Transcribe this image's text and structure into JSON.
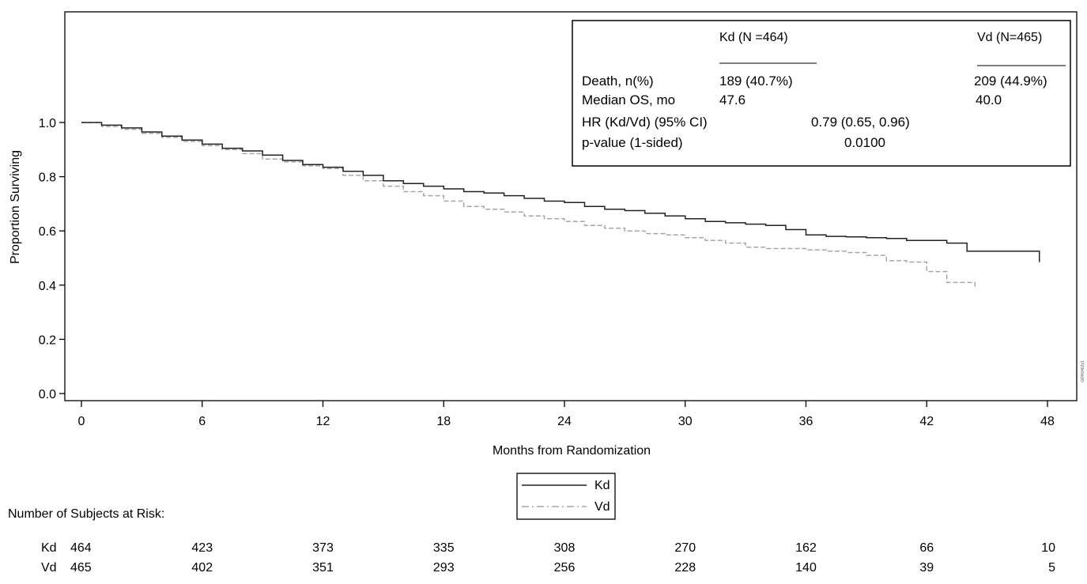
{
  "chart_data": {
    "type": "line",
    "ylabel": "Proportion Surviving",
    "xlabel": "Months from Randomization",
    "xlim": [
      0,
      48
    ],
    "ylim": [
      0,
      1
    ],
    "x_ticks": [
      0,
      6,
      12,
      18,
      24,
      30,
      36,
      42,
      48
    ],
    "y_ticks": [
      "0.0",
      "0.2",
      "0.4",
      "0.6",
      "0.8",
      "1.0"
    ],
    "grid": false,
    "legend": {
      "placement": "below-axis",
      "entries": [
        "Kd",
        "Vd"
      ]
    },
    "series": [
      {
        "name": "Kd",
        "color": "#222222",
        "style": "solid",
        "points": [
          [
            0,
            1.0
          ],
          [
            1,
            0.99
          ],
          [
            2,
            0.98
          ],
          [
            3,
            0.965
          ],
          [
            4,
            0.95
          ],
          [
            5,
            0.935
          ],
          [
            6,
            0.92
          ],
          [
            7,
            0.905
          ],
          [
            8,
            0.895
          ],
          [
            9,
            0.88
          ],
          [
            10,
            0.86
          ],
          [
            11,
            0.845
          ],
          [
            12,
            0.835
          ],
          [
            13,
            0.82
          ],
          [
            14,
            0.805
          ],
          [
            15,
            0.785
          ],
          [
            16,
            0.775
          ],
          [
            17,
            0.765
          ],
          [
            18,
            0.755
          ],
          [
            19,
            0.745
          ],
          [
            20,
            0.74
          ],
          [
            21,
            0.73
          ],
          [
            22,
            0.72
          ],
          [
            23,
            0.71
          ],
          [
            24,
            0.705
          ],
          [
            25,
            0.69
          ],
          [
            26,
            0.68
          ],
          [
            27,
            0.675
          ],
          [
            28,
            0.665
          ],
          [
            29,
            0.655
          ],
          [
            30,
            0.645
          ],
          [
            31,
            0.635
          ],
          [
            32,
            0.63
          ],
          [
            33,
            0.625
          ],
          [
            34,
            0.62
          ],
          [
            35,
            0.605
          ],
          [
            36,
            0.585
          ],
          [
            37,
            0.58
          ],
          [
            38,
            0.578
          ],
          [
            39,
            0.575
          ],
          [
            40,
            0.572
          ],
          [
            41,
            0.565
          ],
          [
            42,
            0.565
          ],
          [
            43,
            0.555
          ],
          [
            44,
            0.525
          ],
          [
            45,
            0.525
          ],
          [
            46,
            0.525
          ],
          [
            47,
            0.525
          ],
          [
            47.6,
            0.525
          ],
          [
            47.6,
            0.485
          ]
        ]
      },
      {
        "name": "Vd",
        "color": "#a6a6a6",
        "style": "dashed",
        "points": [
          [
            0,
            1.0
          ],
          [
            1,
            0.985
          ],
          [
            2,
            0.975
          ],
          [
            3,
            0.96
          ],
          [
            4,
            0.945
          ],
          [
            5,
            0.93
          ],
          [
            6,
            0.915
          ],
          [
            7,
            0.9
          ],
          [
            8,
            0.885
          ],
          [
            9,
            0.865
          ],
          [
            10,
            0.855
          ],
          [
            11,
            0.84
          ],
          [
            12,
            0.83
          ],
          [
            13,
            0.805
          ],
          [
            14,
            0.785
          ],
          [
            15,
            0.765
          ],
          [
            16,
            0.745
          ],
          [
            17,
            0.73
          ],
          [
            18,
            0.71
          ],
          [
            19,
            0.69
          ],
          [
            20,
            0.68
          ],
          [
            21,
            0.67
          ],
          [
            22,
            0.655
          ],
          [
            23,
            0.645
          ],
          [
            24,
            0.635
          ],
          [
            25,
            0.62
          ],
          [
            26,
            0.61
          ],
          [
            27,
            0.6
          ],
          [
            28,
            0.59
          ],
          [
            29,
            0.585
          ],
          [
            30,
            0.575
          ],
          [
            31,
            0.565
          ],
          [
            32,
            0.555
          ],
          [
            33,
            0.54
          ],
          [
            34,
            0.535
          ],
          [
            35,
            0.535
          ],
          [
            36,
            0.53
          ],
          [
            37,
            0.525
          ],
          [
            38,
            0.52
          ],
          [
            39,
            0.51
          ],
          [
            40,
            0.49
          ],
          [
            41,
            0.485
          ],
          [
            42,
            0.45
          ],
          [
            43,
            0.41
          ],
          [
            44,
            0.41
          ],
          [
            44.4,
            0.41
          ],
          [
            44.4,
            0.39
          ]
        ]
      }
    ],
    "stats_box": {
      "col1_header": "Kd (N =464)",
      "col2_header": "Vd (N=465)",
      "rows": [
        {
          "label": "Death, n(%)",
          "kd": "189 (40.7%)",
          "vd": "209 (44.9%)"
        },
        {
          "label": "Median OS, mo",
          "kd": "47.6",
          "vd": "40.0"
        },
        {
          "label": "HR (Kd/Vd) (95% CI)",
          "value": "0.79 (0.65, 0.96)"
        },
        {
          "label": "p-value (1-sided)",
          "value": "0.0100"
        }
      ]
    },
    "risk_table": {
      "title": "Number of Subjects at Risk:",
      "rows": [
        {
          "name": "Kd",
          "values": [
            "464",
            "423",
            "373",
            "335",
            "308",
            "270",
            "162",
            "66",
            "10"
          ]
        },
        {
          "name": "Vd",
          "values": [
            "465",
            "402",
            "351",
            "293",
            "256",
            "228",
            "140",
            "39",
            "5"
          ]
        }
      ]
    },
    "side_code": "GRH0462v1"
  }
}
